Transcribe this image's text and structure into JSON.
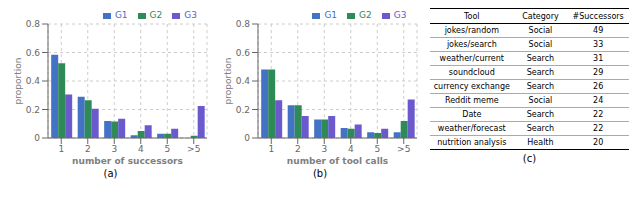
{
  "chart_data": [
    {
      "type": "bar",
      "title": "(a)",
      "xlabel": "number of successors",
      "ylabel": "proportion",
      "categories": [
        "1",
        "2",
        "3",
        "4",
        "5",
        ">5"
      ],
      "series": [
        {
          "name": "G1",
          "color": "#4472C4",
          "values": [
            0.585,
            0.29,
            0.12,
            0.02,
            0.03,
            0.0
          ]
        },
        {
          "name": "G2",
          "color": "#2E8B57",
          "values": [
            0.525,
            0.265,
            0.115,
            0.05,
            0.03,
            0.015
          ]
        },
        {
          "name": "G3",
          "color": "#6A5ACD",
          "values": [
            0.305,
            0.205,
            0.135,
            0.09,
            0.065,
            0.225
          ]
        }
      ],
      "ylim": [
        0,
        0.8
      ],
      "yticks": [
        0,
        0.2,
        0.4,
        0.6,
        0.8
      ],
      "grid": true,
      "legend": "upper right"
    },
    {
      "type": "bar",
      "title": "(b)",
      "xlabel": "number of tool calls",
      "ylabel": "proportion",
      "categories": [
        "1",
        "2",
        "3",
        "4",
        "5",
        ">5"
      ],
      "series": [
        {
          "name": "G1",
          "color": "#4472C4",
          "values": [
            0.48,
            0.23,
            0.13,
            0.07,
            0.04,
            0.04
          ]
        },
        {
          "name": "G2",
          "color": "#2E8B57",
          "values": [
            0.48,
            0.23,
            0.13,
            0.065,
            0.035,
            0.12
          ]
        },
        {
          "name": "G3",
          "color": "#6A5ACD",
          "values": [
            0.265,
            0.155,
            0.155,
            0.095,
            0.065,
            0.27
          ]
        }
      ],
      "ylim": [
        0,
        0.8
      ],
      "yticks": [
        0,
        0.2,
        0.4,
        0.6,
        0.8
      ],
      "grid": true,
      "legend": "upper right"
    },
    {
      "type": "table",
      "title": "(c)",
      "headers": [
        "Tool",
        "Category",
        "#Successors"
      ],
      "rows": [
        [
          "jokes/random",
          "Social",
          "49"
        ],
        [
          "jokes/search",
          "Social",
          "33"
        ],
        [
          "weather/current",
          "Search",
          "31"
        ],
        [
          "soundcloud",
          "Search",
          "29"
        ],
        [
          "currency exchange",
          "Search",
          "26"
        ],
        [
          "Reddit meme",
          "Social",
          "24"
        ],
        [
          "Date",
          "Search",
          "22"
        ],
        [
          "weather/forecast",
          "Search",
          "22"
        ],
        [
          "nutrition analysis",
          "Health",
          "20"
        ]
      ]
    }
  ]
}
